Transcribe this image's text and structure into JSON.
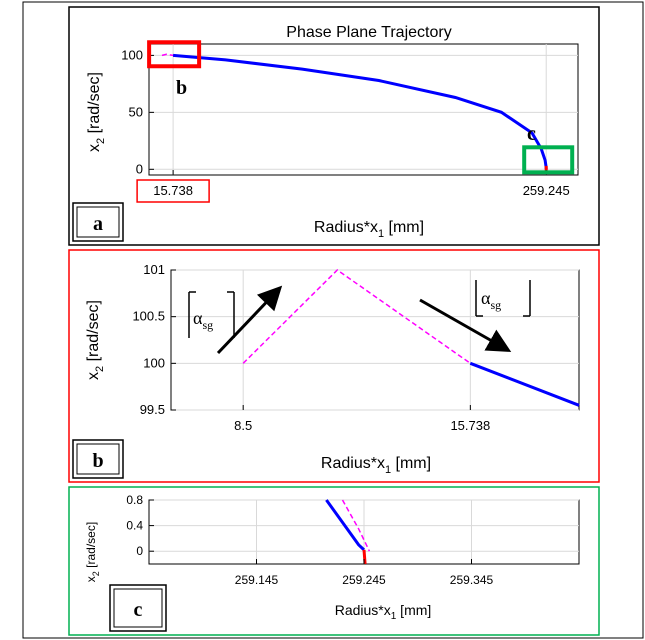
{
  "panels": [
    {
      "id": "a",
      "label": "a",
      "border_color": "#000000",
      "title": "Phase Plane Trajectory",
      "xlabel_main": "Radius*x",
      "xlabel_sub": "1",
      "xlabel_unit": " [mm]",
      "ylabel_main": "x",
      "ylabel_sub": "2",
      "ylabel_unit": " [rad/sec]",
      "xlim": [
        0,
        280
      ],
      "ylim": [
        -5,
        110
      ],
      "yticks": [
        "0",
        "50",
        "100"
      ],
      "ytick_values": [
        0,
        50,
        100
      ],
      "xtick_labels": [
        "15.738",
        "259.245"
      ],
      "xtick_values": [
        15.738,
        259.245
      ],
      "box_labels": [
        "b",
        "c"
      ],
      "box_colors": [
        "#ff0000",
        "#00b050"
      ]
    },
    {
      "id": "b",
      "label": "b",
      "border_color": "#ff0000",
      "xlabel_main": "Radius*x",
      "xlabel_sub": "1",
      "xlabel_unit": " [mm]",
      "ylabel_main": "x",
      "ylabel_sub": "2",
      "ylabel_unit": " [rad/sec]",
      "xlim": [
        6.2,
        19.2
      ],
      "ylim": [
        99.5,
        101
      ],
      "yticks": [
        "99.5",
        "100",
        "100.5",
        "101"
      ],
      "ytick_values": [
        99.5,
        100,
        100.5,
        101
      ],
      "xtick_labels": [
        "8.5",
        "15.738"
      ],
      "xtick_values": [
        8.5,
        15.738
      ],
      "annotation_symbol": "α",
      "annotation_sub": "sg"
    },
    {
      "id": "c",
      "label": "c",
      "border_color": "#00b050",
      "xlabel_main": "Radius*x",
      "xlabel_sub": "1",
      "xlabel_unit": " [mm]",
      "ylabel_main": "x",
      "ylabel_sub": "2",
      "ylabel_unit": " [rad/sec]",
      "xlim": [
        259.045,
        259.445
      ],
      "ylim": [
        -0.2,
        0.8
      ],
      "yticks": [
        "0",
        "0.4",
        "0.8"
      ],
      "ytick_values": [
        0,
        0.4,
        0.8
      ],
      "xtick_labels": [
        "259.145",
        "259.245",
        "259.345"
      ],
      "xtick_values": [
        259.145,
        259.245,
        259.345
      ]
    }
  ],
  "chart_data": [
    {
      "type": "line",
      "panel": "a",
      "title": "Phase Plane Trajectory",
      "xlabel": "Radius*x1 [mm]",
      "ylabel": "x2 [rad/sec]",
      "xlim": [
        0,
        280
      ],
      "ylim": [
        -5,
        110
      ],
      "grid": true,
      "series": [
        {
          "color": "#ff00ff",
          "style": "dashed",
          "x": [
            8.5,
            11.4,
            15.738,
            50,
            100,
            150,
            200,
            230,
            250,
            256,
            258.5,
            259.2,
            259.245
          ],
          "y": [
            100,
            101,
            100,
            96,
            88,
            78,
            63,
            50,
            32,
            18,
            8,
            2,
            0
          ]
        },
        {
          "color": "#0000ff",
          "style": "solid",
          "x": [
            15.738,
            50,
            100,
            150,
            200,
            230,
            250,
            256,
            258.5,
            259.2,
            259.245
          ],
          "y": [
            100,
            96,
            88,
            78,
            63,
            50,
            32,
            18,
            8,
            2,
            0
          ]
        },
        {
          "color": "#ff0000",
          "style": "solid",
          "x": [
            259.245,
            259.245
          ],
          "y": [
            3,
            -2
          ]
        }
      ]
    },
    {
      "type": "line",
      "panel": "b",
      "xlabel": "Radius*x1 [mm]",
      "ylabel": "x2 [rad/sec]",
      "xlim": [
        6.2,
        19.2
      ],
      "ylim": [
        99.5,
        101
      ],
      "grid": true,
      "series": [
        {
          "color": "#ff00ff",
          "style": "dashed",
          "x": [
            8.5,
            11.5,
            15.738,
            19.2
          ],
          "y": [
            100,
            101,
            100,
            99.55
          ]
        },
        {
          "color": "#0000ff",
          "style": "solid",
          "x": [
            15.738,
            19.2
          ],
          "y": [
            100,
            99.55
          ]
        }
      ]
    },
    {
      "type": "line",
      "panel": "c",
      "xlabel": "Radius*x1 [mm]",
      "ylabel": "x2 [rad/sec]",
      "xlim": [
        259.045,
        259.445
      ],
      "ylim": [
        -0.2,
        0.8
      ],
      "grid": true,
      "series": [
        {
          "color": "#ff00ff",
          "style": "dashed",
          "x": [
            259.225,
            259.24,
            259.25
          ],
          "y": [
            0.8,
            0.35,
            0.0
          ]
        },
        {
          "color": "#0000ff",
          "style": "solid",
          "x": [
            259.21,
            259.225,
            259.24,
            259.245
          ],
          "y": [
            0.8,
            0.45,
            0.1,
            0.02
          ]
        },
        {
          "color": "#ff0000",
          "style": "solid",
          "x": [
            259.245,
            259.246
          ],
          "y": [
            0.02,
            -0.2
          ]
        }
      ]
    }
  ]
}
